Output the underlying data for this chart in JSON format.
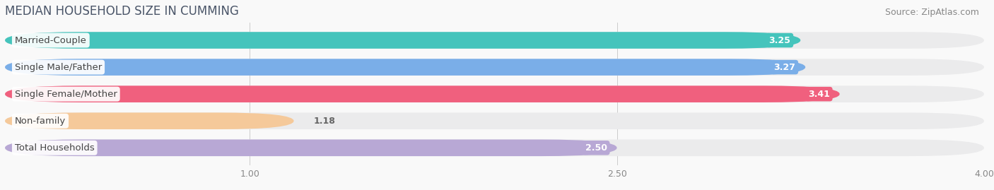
{
  "title": "MEDIAN HOUSEHOLD SIZE IN CUMMING",
  "source": "Source: ZipAtlas.com",
  "categories": [
    "Married-Couple",
    "Single Male/Father",
    "Single Female/Mother",
    "Non-family",
    "Total Households"
  ],
  "values": [
    3.25,
    3.27,
    3.41,
    1.18,
    2.5
  ],
  "bar_colors": [
    "#45c4bc",
    "#7aaee8",
    "#f0607e",
    "#f5c99a",
    "#b8a8d5"
  ],
  "track_color": "#ebebec",
  "xlim": [
    0,
    4.0
  ],
  "xstart": 0.0,
  "xticks": [
    1.0,
    2.5,
    4.0
  ],
  "xtick_labels": [
    "1.00",
    "2.50",
    "4.00"
  ],
  "title_fontsize": 12,
  "source_fontsize": 9,
  "label_fontsize": 9.5,
  "value_fontsize": 9,
  "bar_height": 0.62,
  "bar_spacing": 1.0,
  "background_color": "#f9f9f9",
  "title_color": "#4a5568",
  "source_color": "#888888",
  "label_color": "#444444",
  "value_color_inside": "#ffffff",
  "value_color_outside": "#666666",
  "value_threshold": 1.5,
  "grid_color": "#cccccc",
  "grid_linewidth": 0.7
}
